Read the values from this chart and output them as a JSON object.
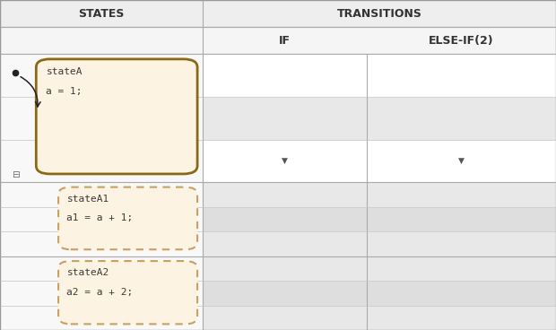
{
  "fig_width": 6.2,
  "fig_height": 3.68,
  "dpi": 100,
  "bg_color": "#ffffff",
  "header_bg": "#eeeeee",
  "subheader_bg": "#f5f5f5",
  "cell_white": "#ffffff",
  "cell_gray1": "#e8e8e8",
  "cell_gray2": "#dedede",
  "state_left_bg": "#f8f8f8",
  "state_box_fill": "#fdf3e3",
  "state_box_border_solid": "#8b6914",
  "state_box_border_dashed": "#c8a060",
  "grid_color": "#cccccc",
  "header_line_color": "#aaaaaa",
  "text_color": "#333333",
  "transitions_label": "TRANSITIONS",
  "states_label": "STATES",
  "if_label": "IF",
  "elseif_label": "ELSE-IF(2)",
  "stateA_title": "stateA",
  "stateA_code": "a = 1;",
  "stateA1_title": "stateA1",
  "stateA1_code": "a1 = a + 1;",
  "stateA2_title": "stateA2",
  "stateA2_code": "a2 = a + 2;",
  "col0": 0.0,
  "col1": 0.365,
  "col2": 0.66,
  "col3": 1.0,
  "row0": 1.0,
  "row1": 0.918,
  "row2": 0.836,
  "row3": 0.448,
  "row4": 0.224,
  "row5": 0.0
}
